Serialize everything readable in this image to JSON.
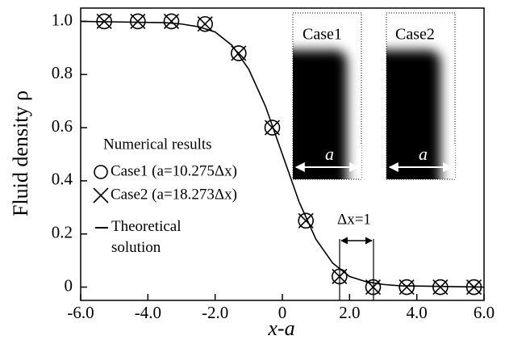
{
  "chart_data": {
    "type": "line",
    "x_label": "x-a",
    "y_label": "Fluid density ρ",
    "xlim": [
      -6,
      6
    ],
    "ylim": [
      -0.05,
      1.05
    ],
    "xticks": [
      {
        "value": -6,
        "label": "-6.0"
      },
      {
        "value": -4,
        "label": "-4.0"
      },
      {
        "value": -2,
        "label": "-2.0"
      },
      0,
      {
        "value": 2,
        "label": "2.0"
      },
      {
        "value": 4,
        "label": "4.0"
      },
      {
        "value": 6,
        "label": "6.0"
      }
    ],
    "yticks": [
      0,
      0.2,
      0.4,
      0.6,
      0.8,
      {
        "value": 1,
        "label": "1.0"
      }
    ],
    "legend_title": "Numerical results",
    "series": [
      {
        "name": "Case1 (a=10.275Δx)",
        "marker": "circle",
        "color": "#000000",
        "x": [
          -5.3,
          -4.3,
          -3.3,
          -2.3,
          -1.3,
          -0.3,
          0.7,
          1.7,
          2.7,
          3.7,
          4.7,
          5.7
        ],
        "values": [
          1,
          1,
          1,
          0.99,
          0.88,
          0.6,
          0.25,
          0.04,
          0,
          0,
          0,
          0
        ]
      },
      {
        "name": "Case2 (a=18.273Δx)",
        "marker": "cross",
        "color": "#000000",
        "x": [
          -5.3,
          -4.3,
          -3.3,
          -2.3,
          -1.3,
          -0.3,
          0.7,
          1.7,
          2.7,
          3.7,
          4.7,
          5.7
        ],
        "values": [
          1,
          1,
          1,
          0.99,
          0.88,
          0.6,
          0.25,
          0.04,
          0,
          0,
          0,
          0
        ]
      },
      {
        "name": "Theoretical solution",
        "marker": "none",
        "color": "#000000",
        "x": [
          -6,
          -3.5,
          -3,
          -2.5,
          -2,
          -1.5,
          -1,
          -0.5,
          0,
          0.5,
          1,
          1.5,
          2,
          2.5,
          3,
          3.5,
          6
        ],
        "values": [
          1,
          0.995,
          0.99,
          0.98,
          0.96,
          0.91,
          0.82,
          0.68,
          0.5,
          0.32,
          0.18,
          0.09,
          0.04,
          0.02,
          0.01,
          0.005,
          0
        ]
      }
    ],
    "annotations": {
      "spacing_label": "Δx=1",
      "inset_titles": [
        "Case1",
        "Case2"
      ],
      "inset_dimension_label": "a"
    }
  }
}
